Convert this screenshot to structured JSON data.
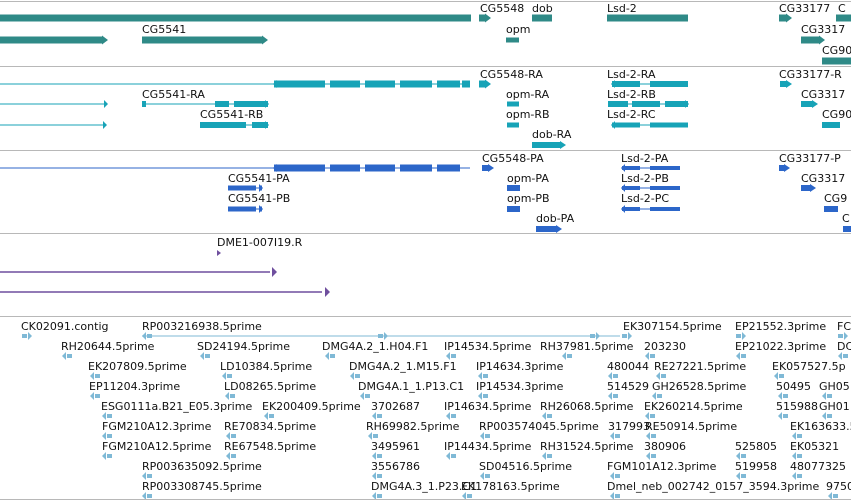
{
  "colors": {
    "gene": "#2f8a87",
    "transcript_flybase": "#17a3b7",
    "transcript_model": "#2c66c9",
    "clone": "#6f4f9e",
    "est": "#7fb9d6",
    "separator": "#b8b8b8"
  },
  "tracks": {
    "genes": {
      "labels": [
        "CG5548",
        "dob",
        "Lsd-2",
        "CG33177",
        "C",
        "CG5541",
        "opm",
        "CG3317",
        "CG90"
      ]
    },
    "transcripts": {
      "labels": [
        "CG5548-RA",
        "Lsd-2-RA",
        "CG33177-R",
        "CG5541-RA",
        "opm-RA",
        "Lsd-2-RB",
        "CG3317",
        "CG5541-RB",
        "opm-RB",
        "Lsd-2-RC",
        "CG90",
        "dob-RA"
      ]
    },
    "models": {
      "labels": [
        "CG5548-PA",
        "Lsd-2-PA",
        "CG33177-P",
        "CG5541-PA",
        "opm-PA",
        "Lsd-2-PB",
        "CG3317",
        "CG5541-PB",
        "opm-PB",
        "Lsd-2-PC",
        "CG9",
        "dob-PA",
        "C"
      ]
    },
    "clones": {
      "labels": [
        "DME1-007I19.R"
      ]
    },
    "ests": {
      "labels": [
        "CK02091.contig",
        "RP003216938.5prime",
        "EK307154.5prime",
        "EP21552.3prime",
        "FC",
        "RH20644.5prime",
        "SD24194.5prime",
        "DMG4A.2_1.H04.F1",
        "IP14534.5prime",
        "RH37981.5prime",
        "203230",
        "EP21022.3prime",
        "DC",
        "EK207809.5prime",
        "LD10384.5prime",
        "DMG4A.2_1.M15.F1",
        "IP14634.3prime",
        "480044",
        "RE27221.5prime",
        "EK057527.5p",
        "EP11204.3prime",
        "LD08265.5prime",
        "DMG4A.1_1.P13.C1",
        "IP14534.3prime",
        "514529",
        "GH26528.5prime",
        "50495",
        "GH05",
        "ESG0111a.B21_E05.3prime",
        "EK200409.5prime",
        "3702687",
        "IP14634.5prime",
        "RH26068.5prime",
        "EK260214.5prime",
        "515988",
        "GH01",
        "FGM210A12.3prime",
        "RE70834.5prime",
        "RH69982.5prime",
        "RP003574045.5prime",
        "317993",
        "RE50914.5prime",
        "EK163633.5p",
        "FGM210A12.5prime",
        "RE67548.5prime",
        "3495961",
        "IP14434.5prime",
        "RH31524.5prime",
        "380906",
        "525805",
        "EK05321",
        "RP003635092.5prime",
        "3556786",
        "SD04516.5prime",
        "FGM101A12.3prime",
        "519958",
        "48077325",
        "RP003308745.5prime",
        "DMG4A.3_1.P23.C1",
        "EK178163.5prime",
        "Dmel_neb_002742_0157_3594.3prime",
        "9750"
      ]
    }
  }
}
